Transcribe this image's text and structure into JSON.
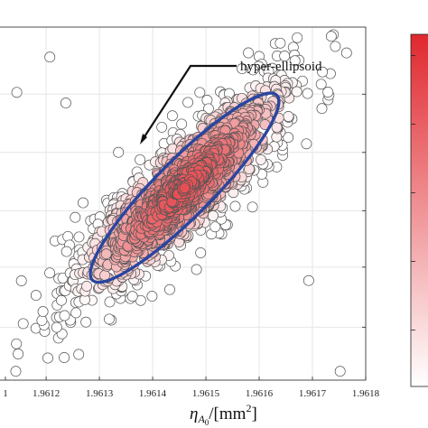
{
  "chart_data": {
    "type": "scatter",
    "xlabel": "η",
    "xlabel_sub": "A",
    "xlabel_subsub": "0",
    "xlabel_unit_open": "/[mm",
    "xlabel_unit_sup": "2",
    "xlabel_unit_close": "]",
    "x_ticks": [
      "1",
      "1.9612",
      "1.9613",
      "1.9614",
      "1.9615",
      "1.9616",
      "1.9617",
      "1.9618"
    ],
    "xlim": [
      1.96111,
      1.9618
    ],
    "ylim": [
      0,
      1
    ],
    "grid": true,
    "annotation": "hyper-ellipsoid",
    "ellipse": {
      "center_x": 1.96146,
      "center_y": 0.545,
      "semi_major_x": 0.000173,
      "semi_major_y": 0.262,
      "semi_minor_x": 4e-05,
      "semi_minor_y": -0.052,
      "edge_color": "#2a45a0"
    },
    "point_color_low": "#ffffff",
    "point_color_high": "#e0292f",
    "point_edge_color": "#555555",
    "colorbar": {
      "orientation": "vertical",
      "colors": [
        "#e0282e",
        "#ffffff"
      ]
    },
    "outliers": [
      {
        "x": 1.961145,
        "y": 0.815
      },
      {
        "x": 1.961207,
        "y": 0.915
      },
      {
        "x": 1.961237,
        "y": 0.785
      },
      {
        "x": 1.961143,
        "y": 0.025
      },
      {
        "x": 1.961752,
        "y": 0.025
      },
      {
        "x": 1.961693,
        "y": 0.282
      }
    ],
    "n_cluster_points": 1100
  }
}
